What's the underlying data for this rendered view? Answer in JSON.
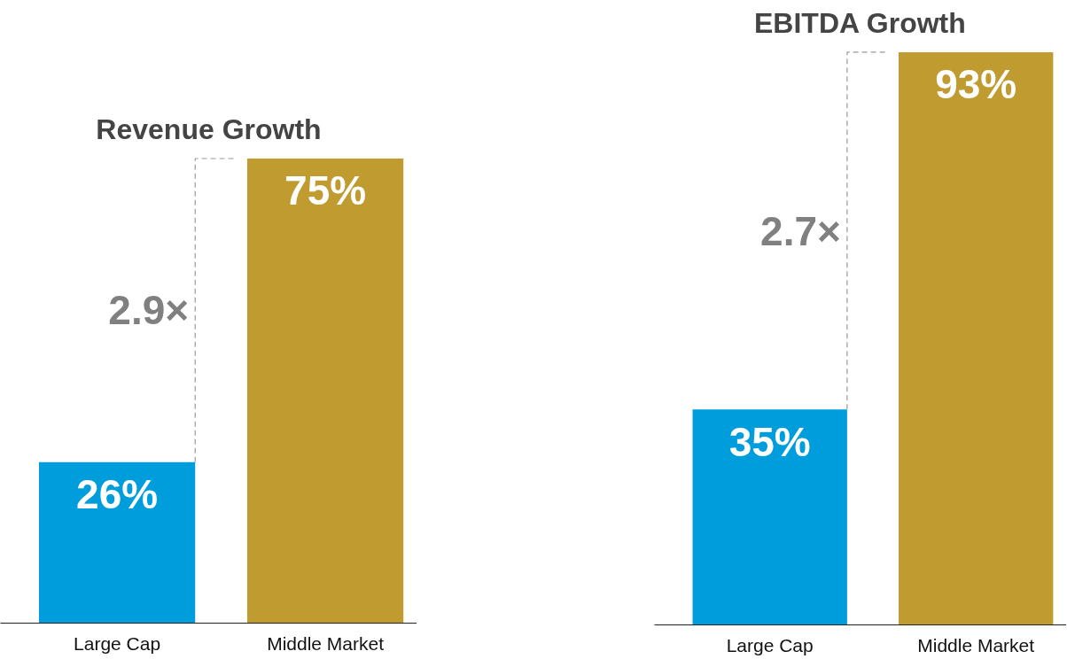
{
  "chart_data": [
    {
      "type": "bar",
      "title": "Revenue Growth",
      "categories": [
        "Large Cap",
        "Middle Market"
      ],
      "values": [
        26,
        75
      ],
      "colors": [
        "#009ddc",
        "#bf9b30"
      ],
      "value_labels": [
        "26%",
        "75%"
      ],
      "annotations": [
        "2.9×"
      ],
      "tick_labels": "x"
    },
    {
      "type": "bar",
      "title": "EBITDA Growth",
      "categories": [
        "Large Cap",
        "Middle Market"
      ],
      "values": [
        35,
        93
      ],
      "colors": [
        "#009ddc",
        "#bf9b30"
      ],
      "value_labels": [
        "35%",
        "93%"
      ],
      "annotations": [
        "2.7×"
      ],
      "tick_labels": "x"
    }
  ]
}
